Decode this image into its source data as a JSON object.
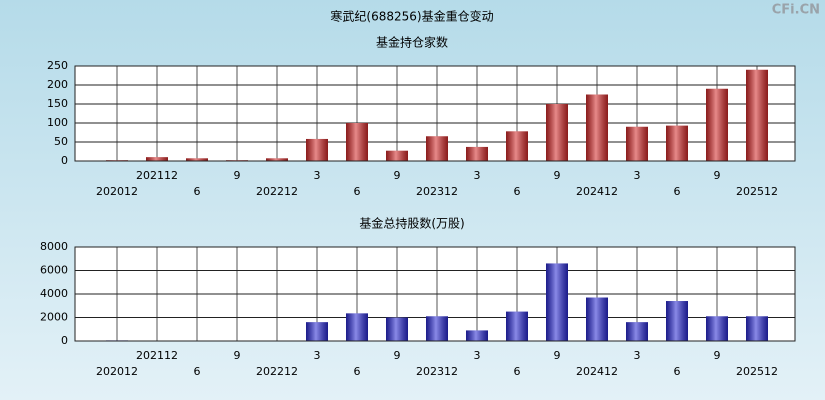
{
  "title": "寒武纪(688256)基金重仓变动",
  "watermark": "CFi.CN",
  "chart_data": [
    {
      "type": "bar",
      "title": "基金持仓家数",
      "categories": [
        "202012",
        "202112",
        "6",
        "9",
        "202212",
        "3",
        "6",
        "9",
        "202312",
        "3",
        "6",
        "9",
        "202412",
        "3",
        "6",
        "9",
        "202512"
      ],
      "values": [
        2,
        10,
        7,
        2,
        7,
        58,
        100,
        27,
        65,
        37,
        78,
        150,
        175,
        90,
        93,
        190,
        240
      ],
      "color": "#d42a2a",
      "ylim": [
        0,
        250
      ],
      "yticks": [
        0,
        50,
        100,
        150,
        200,
        250
      ],
      "grid": true
    },
    {
      "type": "bar",
      "title": "基金总持股数(万股)",
      "categories": [
        "202012",
        "202112",
        "6",
        "9",
        "202212",
        "3",
        "6",
        "9",
        "202312",
        "3",
        "6",
        "9",
        "202412",
        "3",
        "6",
        "9",
        "202512"
      ],
      "values": [
        50,
        30,
        30,
        30,
        30,
        1600,
        2350,
        2000,
        2100,
        900,
        2500,
        6600,
        3700,
        1600,
        3400,
        2100,
        2100
      ],
      "color": "#2a2ad4",
      "ylim": [
        0,
        8000
      ],
      "yticks": [
        0,
        2000,
        4000,
        6000,
        8000
      ],
      "grid": true
    }
  ]
}
